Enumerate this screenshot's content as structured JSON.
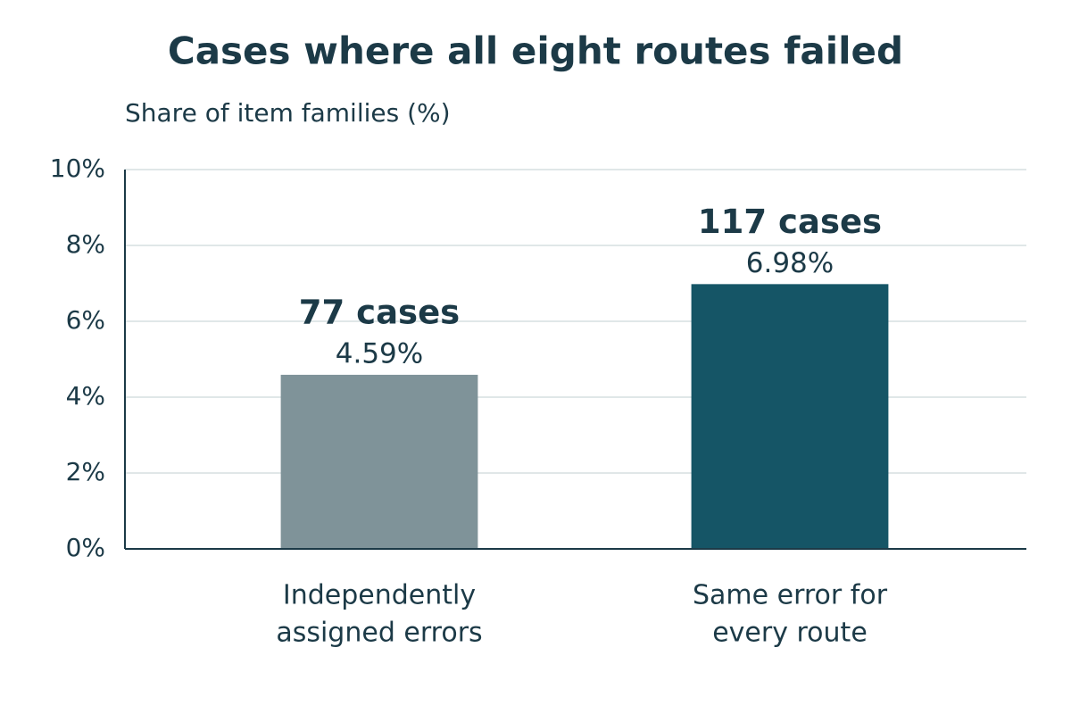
{
  "chart_data": {
    "type": "bar",
    "title": "Cases where all eight routes failed",
    "y_label": "Share of item families (%)",
    "categories": [
      [
        "Independently",
        "assigned errors"
      ],
      [
        "Same error for",
        "every route"
      ]
    ],
    "values": [
      4.59,
      6.98
    ],
    "value_labels": [
      "4.59%",
      "6.98%"
    ],
    "annotations": [
      "77 cases",
      "117 cases"
    ],
    "colors": [
      "#7f9399",
      "#155566"
    ],
    "ylim": [
      0,
      10
    ],
    "yticks": [
      {
        "value": 0,
        "label": "0%"
      },
      {
        "value": 2,
        "label": "2%"
      },
      {
        "value": 4,
        "label": "4%"
      },
      {
        "value": 6,
        "label": "6%"
      },
      {
        "value": 8,
        "label": "8%"
      },
      {
        "value": 10,
        "label": "10%"
      }
    ],
    "grid": true
  }
}
